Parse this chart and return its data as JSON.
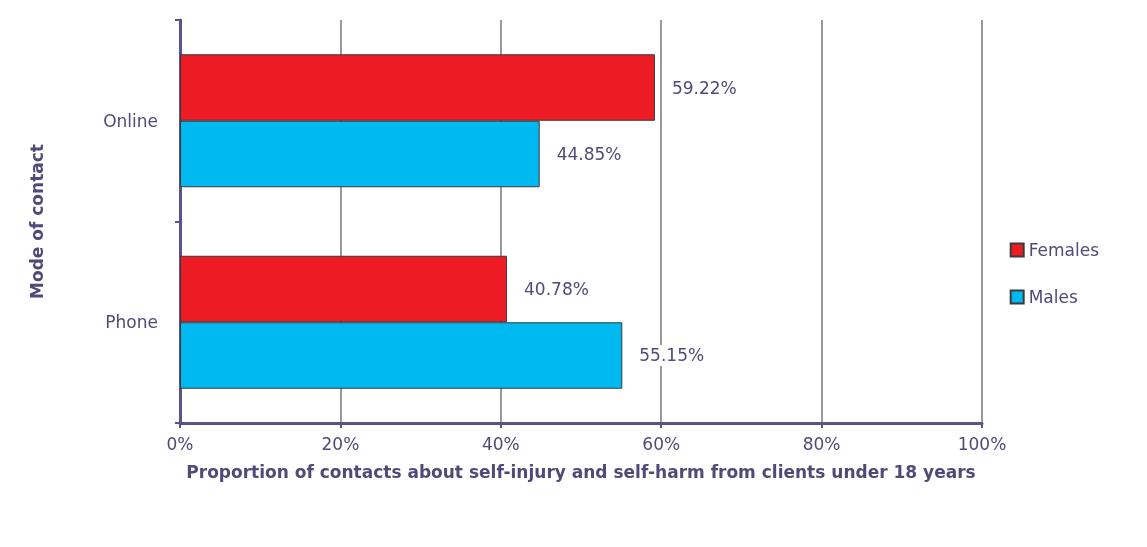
{
  "chart_data": {
    "type": "bar",
    "orientation": "horizontal",
    "xlabel": "Proportion of contacts about self-injury and self-harm from clients under 18 years",
    "ylabel": "Mode of contact",
    "categories": [
      "Online",
      "Phone"
    ],
    "series": [
      {
        "name": "Females",
        "color": "#ed1c24",
        "values": [
          59.22,
          40.78
        ],
        "value_labels": [
          "59.22%",
          "40.78%"
        ]
      },
      {
        "name": "Males",
        "color": "#00b9f1",
        "values": [
          44.85,
          55.15
        ],
        "value_labels": [
          "44.85%",
          "55.15%"
        ]
      }
    ],
    "xlim": [
      0,
      100
    ],
    "xticks": [
      {
        "value": 0,
        "label": "0%"
      },
      {
        "value": 20,
        "label": "20%"
      },
      {
        "value": 40,
        "label": "40%"
      },
      {
        "value": 60,
        "label": "60%"
      },
      {
        "value": 80,
        "label": "80%"
      },
      {
        "value": 100,
        "label": "100%"
      }
    ],
    "grid": "x",
    "legend": "right"
  }
}
